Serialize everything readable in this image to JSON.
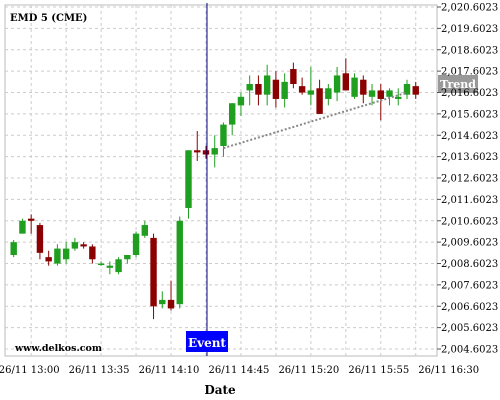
{
  "chart_data": {
    "type": "candlestick",
    "title": "EMD 5 (CME)",
    "xlabel": "Date",
    "ylabel": "",
    "watermark": "www.delkos.com",
    "ylim": [
      2004.2,
      2020.8
    ],
    "y_ticks": [
      "2,004.6023",
      "2,005.6023",
      "2,006.6023",
      "2,007.6023",
      "2,008.6023",
      "2,009.6023",
      "2,010.6023",
      "2,011.6023",
      "2,012.6023",
      "2,013.6023",
      "2,014.6023",
      "2,015.6023",
      "2,016.6023",
      "2,017.6023",
      "2,018.6023",
      "2,019.6023",
      "2,020.6023"
    ],
    "x_ticks": [
      "26/11 13:00",
      "26/11 13:35",
      "26/11 14:10",
      "26/11 14:45",
      "26/11 15:20",
      "26/11 15:55",
      "26/11 16:30"
    ],
    "grid": true,
    "colors": {
      "up": "#1f9e1f",
      "down": "#8b0000",
      "event_line": "#000080",
      "event_bg": "#0000ff",
      "trend_line": "#888888",
      "trend_bg": "#999999"
    },
    "candles": [
      {
        "open": 2009.0,
        "high": 2009.7,
        "low": 2008.9,
        "close": 2009.6
      },
      {
        "open": 2010.0,
        "high": 2010.7,
        "low": 2010.0,
        "close": 2010.6
      },
      {
        "open": 2010.7,
        "high": 2010.9,
        "low": 2010.0,
        "close": 2010.6
      },
      {
        "open": 2010.4,
        "high": 2010.5,
        "low": 2008.8,
        "close": 2009.1
      },
      {
        "open": 2008.9,
        "high": 2009.2,
        "low": 2008.5,
        "close": 2008.7
      },
      {
        "open": 2008.6,
        "high": 2009.5,
        "low": 2008.5,
        "close": 2009.3
      },
      {
        "open": 2008.8,
        "high": 2009.6,
        "low": 2008.6,
        "close": 2009.3
      },
      {
        "open": 2009.3,
        "high": 2009.8,
        "low": 2009.2,
        "close": 2009.6
      },
      {
        "open": 2009.5,
        "high": 2009.6,
        "low": 2009.3,
        "close": 2009.4
      },
      {
        "open": 2009.4,
        "high": 2009.5,
        "low": 2008.6,
        "close": 2008.8
      },
      {
        "open": 2008.6,
        "high": 2008.7,
        "low": 2008.5,
        "close": 2008.6
      },
      {
        "open": 2008.4,
        "high": 2008.7,
        "low": 2008.1,
        "close": 2008.5
      },
      {
        "open": 2008.2,
        "high": 2008.9,
        "low": 2008.1,
        "close": 2008.8
      },
      {
        "open": 2008.8,
        "high": 2008.9,
        "low": 2008.6,
        "close": 2009.0
      },
      {
        "open": 2009.0,
        "high": 2010.1,
        "low": 2008.9,
        "close": 2010.0
      },
      {
        "open": 2009.9,
        "high": 2010.6,
        "low": 2009.8,
        "close": 2010.4
      },
      {
        "open": 2009.8,
        "high": 2010.0,
        "low": 2006.0,
        "close": 2006.6
      },
      {
        "open": 2006.7,
        "high": 2007.3,
        "low": 2006.5,
        "close": 2006.9
      },
      {
        "open": 2006.9,
        "high": 2007.8,
        "low": 2006.4,
        "close": 2006.5
      },
      {
        "open": 2006.7,
        "high": 2010.8,
        "low": 2006.5,
        "close": 2010.6
      },
      {
        "open": 2011.2,
        "high": 2013.9,
        "low": 2010.7,
        "close": 2013.9
      },
      {
        "open": 2013.9,
        "high": 2014.8,
        "low": 2013.4,
        "close": 2013.8
      },
      {
        "open": 2013.9,
        "high": 2014.1,
        "low": 2013.5,
        "close": 2013.7
      },
      {
        "open": 2013.7,
        "high": 2014.6,
        "low": 2013.1,
        "close": 2014.0
      },
      {
        "open": 2014.1,
        "high": 2015.2,
        "low": 2013.6,
        "close": 2015.1
      },
      {
        "open": 2015.1,
        "high": 2016.1,
        "low": 2014.6,
        "close": 2016.1
      },
      {
        "open": 2016.0,
        "high": 2016.6,
        "low": 2015.5,
        "close": 2016.4
      },
      {
        "open": 2016.7,
        "high": 2017.4,
        "low": 2016.0,
        "close": 2017.0
      },
      {
        "open": 2017.0,
        "high": 2017.4,
        "low": 2016.0,
        "close": 2016.5
      },
      {
        "open": 2016.5,
        "high": 2017.9,
        "low": 2016.0,
        "close": 2017.4
      },
      {
        "open": 2017.2,
        "high": 2017.6,
        "low": 2015.9,
        "close": 2016.3
      },
      {
        "open": 2016.3,
        "high": 2017.5,
        "low": 2015.9,
        "close": 2017.1
      },
      {
        "open": 2017.7,
        "high": 2018.0,
        "low": 2016.8,
        "close": 2017.0
      },
      {
        "open": 2016.9,
        "high": 2017.3,
        "low": 2016.5,
        "close": 2016.6
      },
      {
        "open": 2016.5,
        "high": 2017.8,
        "low": 2016.0,
        "close": 2016.7
      },
      {
        "open": 2016.8,
        "high": 2017.2,
        "low": 2015.6,
        "close": 2015.6
      },
      {
        "open": 2016.3,
        "high": 2017.0,
        "low": 2016.0,
        "close": 2016.8
      },
      {
        "open": 2016.6,
        "high": 2017.8,
        "low": 2016.2,
        "close": 2017.4
      },
      {
        "open": 2017.5,
        "high": 2018.2,
        "low": 2016.7,
        "close": 2016.7
      },
      {
        "open": 2016.4,
        "high": 2017.5,
        "low": 2016.3,
        "close": 2017.3
      },
      {
        "open": 2017.2,
        "high": 2017.4,
        "low": 2016.1,
        "close": 2016.5
      },
      {
        "open": 2016.4,
        "high": 2017.0,
        "low": 2016.0,
        "close": 2016.7
      },
      {
        "open": 2016.7,
        "high": 2017.0,
        "low": 2015.3,
        "close": 2016.3
      },
      {
        "open": 2016.4,
        "high": 2016.8,
        "low": 2016.0,
        "close": 2016.7
      },
      {
        "open": 2016.3,
        "high": 2016.8,
        "low": 2016.0,
        "close": 2016.4
      },
      {
        "open": 2016.5,
        "high": 2017.2,
        "low": 2016.3,
        "close": 2017.0
      },
      {
        "open": 2016.9,
        "high": 2017.1,
        "low": 2016.3,
        "close": 2016.5
      }
    ],
    "event": {
      "label": "Event",
      "candle_index": 22
    },
    "trend": {
      "label": "Trend",
      "from_index": 24,
      "from_value": 2014.0,
      "to_index": 45,
      "to_value": 2016.6
    }
  }
}
